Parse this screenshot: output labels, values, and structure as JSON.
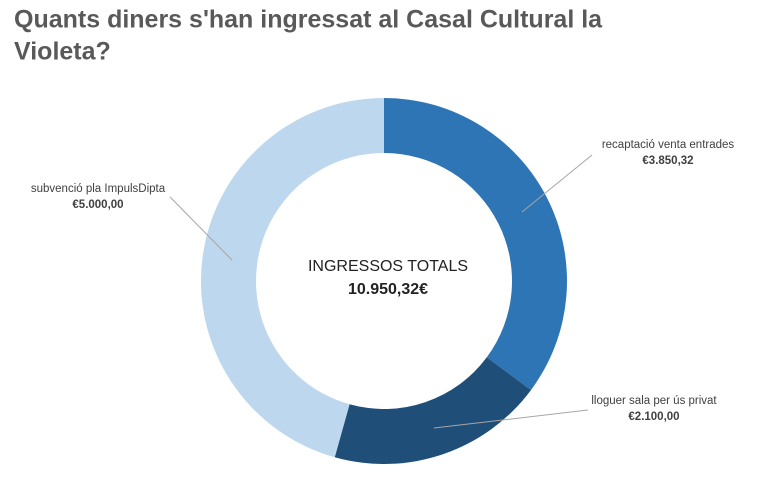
{
  "chart_data": {
    "type": "donut",
    "title": "Quants diners s'han ingressat al Casal Cultural la Violeta?",
    "center_title": "INGRESSOS TOTALS",
    "center_value": "10.950,32€",
    "categories": [
      "recaptació venta entrades",
      "lloguer sala per ús privat",
      "subvenció pla ImpulsDipta"
    ],
    "values": [
      3850.32,
      2100,
      5000
    ],
    "value_labels": [
      "€3.850,32",
      "€2.100,00",
      "€5.000,00"
    ],
    "colors": [
      "#2e75b6",
      "#1f4e79",
      "#bdd7ee"
    ]
  }
}
